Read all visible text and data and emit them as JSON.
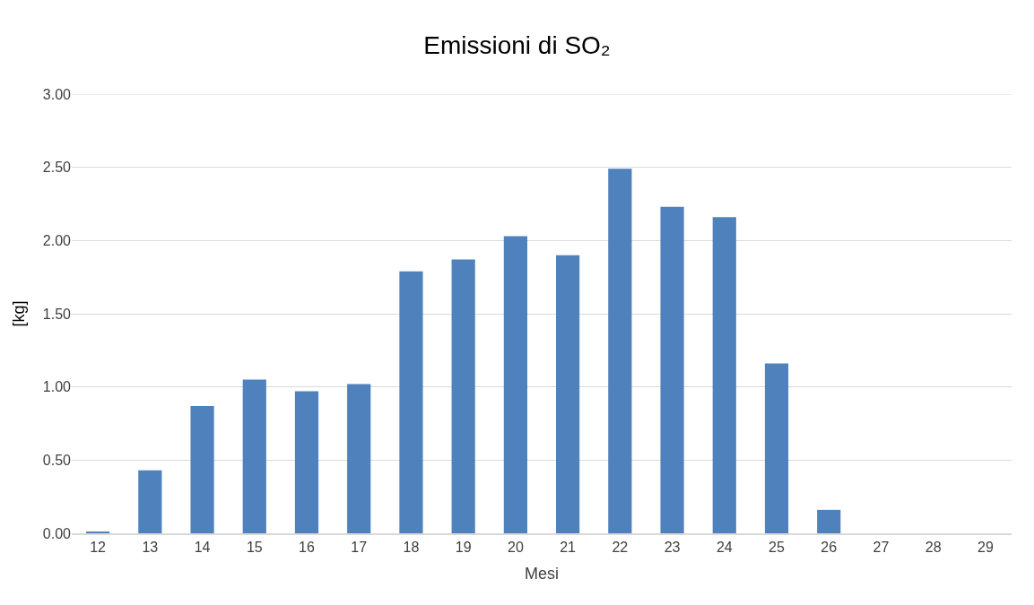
{
  "chart_data": {
    "type": "bar",
    "title": "Emissioni di SO₂",
    "xlabel": "Mesi",
    "ylabel": "[kg]",
    "categories": [
      "12",
      "13",
      "14",
      "15",
      "16",
      "17",
      "18",
      "19",
      "20",
      "21",
      "22",
      "23",
      "24",
      "25",
      "26",
      "27",
      "28",
      "29"
    ],
    "values": [
      0.01,
      0.43,
      0.87,
      1.05,
      0.97,
      1.02,
      1.79,
      1.87,
      2.03,
      1.9,
      2.49,
      2.23,
      2.16,
      1.16,
      0.16,
      0,
      0,
      0
    ],
    "color": "#4f81bd",
    "ylim": [
      0,
      3
    ],
    "yticks": [
      {
        "value": 0,
        "label": "0.00"
      },
      {
        "value": 0.5,
        "label": "0.50"
      },
      {
        "value": 1,
        "label": "1.00"
      },
      {
        "value": 1.5,
        "label": "1.50"
      },
      {
        "value": 2,
        "label": "2.00"
      },
      {
        "value": 2.5,
        "label": "2.50"
      },
      {
        "value": 3,
        "label": "3.00"
      }
    ],
    "grid": "y",
    "legend": false
  }
}
